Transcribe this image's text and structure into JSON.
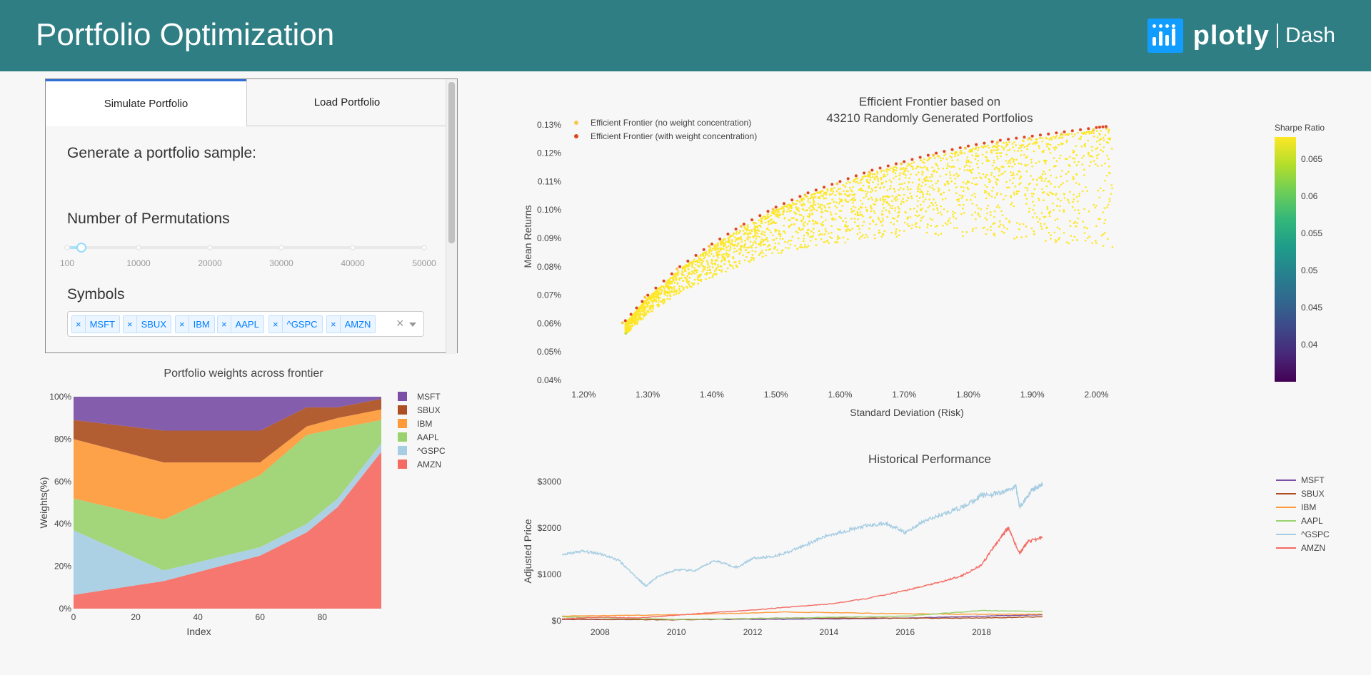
{
  "header": {
    "title": "Portfolio Optimization",
    "logo_word": "plotly",
    "logo_product": "Dash"
  },
  "tabs": [
    {
      "label": "Simulate Portfolio",
      "active": true
    },
    {
      "label": "Load Portfolio",
      "active": false
    }
  ],
  "simulate": {
    "heading": "Generate a portfolio sample:",
    "permutations_label": "Number of Permutations",
    "slider_value": 1000,
    "slider_marks": [
      "100",
      "10000",
      "20000",
      "30000",
      "40000",
      "50000"
    ],
    "symbols_label": "Symbols",
    "symbols": [
      "MSFT",
      "SBUX",
      "IBM",
      "AAPL",
      "^GSPC",
      "AMZN"
    ],
    "clear_icon": "×",
    "chip_remove_icon": "×"
  },
  "colors": {
    "header": "#2f7e84",
    "MSFT": "#7b4fa6",
    "SBUX": "#ad4f22",
    "IBM": "#fd9a3a",
    "AAPL": "#9bd16f",
    "^GSPC": "#a6cde2",
    "AMZN": "#f46b63"
  },
  "chart_data": [
    {
      "id": "weights",
      "type": "area",
      "title": "Portfolio weights across frontier",
      "xlabel": "Index",
      "ylabel": "Weights(%)",
      "x_ticks": [
        "0",
        "20",
        "40",
        "60",
        "80"
      ],
      "y_ticks": [
        "0%",
        "20%",
        "40%",
        "60%",
        "80%",
        "100%"
      ],
      "xlim": [
        0,
        99
      ],
      "ylim": [
        0,
        100
      ],
      "legend_position": "right",
      "x": [
        0,
        29,
        60,
        75,
        85,
        99
      ],
      "series": [
        {
          "name": "AMZN",
          "values": [
            6.5,
            13,
            25,
            36,
            48,
            74
          ]
        },
        {
          "name": "^GSPC",
          "values": [
            30.5,
            5,
            4,
            4,
            4,
            4
          ]
        },
        {
          "name": "AAPL",
          "values": [
            15,
            24,
            34,
            42,
            33,
            11
          ]
        },
        {
          "name": "IBM",
          "values": [
            28,
            27,
            6,
            4,
            5,
            5
          ]
        },
        {
          "name": "SBUX",
          "values": [
            9,
            15,
            15,
            9,
            5,
            5
          ]
        },
        {
          "name": "MSFT",
          "values": [
            11,
            16,
            16,
            5,
            5,
            1
          ]
        }
      ]
    },
    {
      "id": "frontier",
      "type": "scatter",
      "title": "Efficient Frontier based on",
      "subtitle": "43210 Randomly Generated Portfolios",
      "xlabel": "Standard Deviation (Risk)",
      "ylabel": "Mean Returns",
      "x_ticks": [
        "1.20%",
        "1.30%",
        "1.40%",
        "1.50%",
        "1.60%",
        "1.70%",
        "1.80%",
        "1.90%",
        "2.00%"
      ],
      "y_ticks": [
        "0.04%",
        "0.05%",
        "0.06%",
        "0.07%",
        "0.08%",
        "0.09%",
        "0.10%",
        "0.11%",
        "0.12%",
        "0.13%"
      ],
      "xlim": [
        1.175,
        2.2
      ],
      "ylim": [
        0.04,
        0.1312
      ],
      "colorbar": {
        "title": "Sharpe Ratio",
        "ticks": [
          "0.065",
          "0.06",
          "0.055",
          "0.05",
          "0.045",
          "0.04"
        ],
        "range": [
          0.035,
          0.068
        ]
      },
      "legend": [
        {
          "name": "Efficient Frontier (no weight concentration)",
          "color": "#f7c84a"
        },
        {
          "name": "Efficient Frontier (with weight concentration)",
          "color": "#e0451f"
        }
      ],
      "frontier_points": {
        "x": [
          1.265,
          1.3,
          1.35,
          1.4,
          1.45,
          1.5,
          1.55,
          1.6,
          1.65,
          1.7,
          1.75,
          1.8,
          1.85,
          1.9,
          1.95,
          2.0,
          2.02
        ],
        "y": [
          0.061,
          0.07,
          0.08,
          0.088,
          0.095,
          0.101,
          0.106,
          0.11,
          0.114,
          0.117,
          0.12,
          0.1225,
          0.1245,
          0.126,
          0.1275,
          0.129,
          0.1295
        ]
      }
    },
    {
      "id": "history",
      "type": "line",
      "title": "Historical Performance",
      "ylabel": "Adjusted Price",
      "x_ticks": [
        "2008",
        "2010",
        "2012",
        "2014",
        "2016",
        "2018"
      ],
      "y_ticks": [
        "$0",
        "$1000",
        "$2000",
        "$3000"
      ],
      "xlim": [
        2007.0,
        2019.6
      ],
      "ylim": [
        0,
        3000
      ],
      "legend_position": "right",
      "series": [
        {
          "name": "MSFT",
          "x": [
            2007,
            2010,
            2013,
            2016,
            2018,
            2019.6
          ],
          "values": [
            30,
            28,
            33,
            55,
            100,
            130
          ]
        },
        {
          "name": "SBUX",
          "x": [
            2007,
            2010,
            2013,
            2016,
            2018,
            2019.6
          ],
          "values": [
            35,
            20,
            60,
            55,
            60,
            85
          ]
        },
        {
          "name": "IBM",
          "x": [
            2007,
            2010,
            2013,
            2016,
            2018,
            2019.6
          ],
          "values": [
            100,
            130,
            190,
            150,
            140,
            140
          ]
        },
        {
          "name": "AAPL",
          "x": [
            2007,
            2010,
            2013,
            2016,
            2018,
            2019.6
          ],
          "values": [
            85,
            30,
            60,
            100,
            220,
            200
          ]
        },
        {
          "name": "^GSPC",
          "x": [
            2007.0,
            2007.5,
            2008.0,
            2008.5,
            2009.0,
            2009.2,
            2009.5,
            2010.0,
            2010.5,
            2011.0,
            2011.6,
            2012.0,
            2012.5,
            2013.0,
            2013.5,
            2014.0,
            2014.5,
            2015.0,
            2015.5,
            2016.0,
            2016.5,
            2017.0,
            2017.5,
            2018.0,
            2018.5,
            2018.9,
            2019.0,
            2019.3,
            2019.6
          ],
          "values": [
            1420,
            1500,
            1450,
            1300,
            900,
            750,
            950,
            1100,
            1080,
            1300,
            1150,
            1350,
            1380,
            1500,
            1680,
            1850,
            1950,
            2050,
            2100,
            1900,
            2150,
            2300,
            2450,
            2700,
            2750,
            2900,
            2450,
            2800,
            2950
          ]
        },
        {
          "name": "AMZN",
          "x": [
            2007,
            2008,
            2009,
            2010,
            2011,
            2012,
            2013,
            2014,
            2015,
            2016,
            2016.5,
            2017,
            2017.5,
            2018,
            2018.5,
            2018.7,
            2019.0,
            2019.2,
            2019.6
          ],
          "values": [
            40,
            80,
            60,
            120,
            180,
            230,
            300,
            360,
            480,
            650,
            750,
            850,
            980,
            1200,
            1800,
            2000,
            1450,
            1700,
            1800
          ]
        }
      ]
    }
  ]
}
